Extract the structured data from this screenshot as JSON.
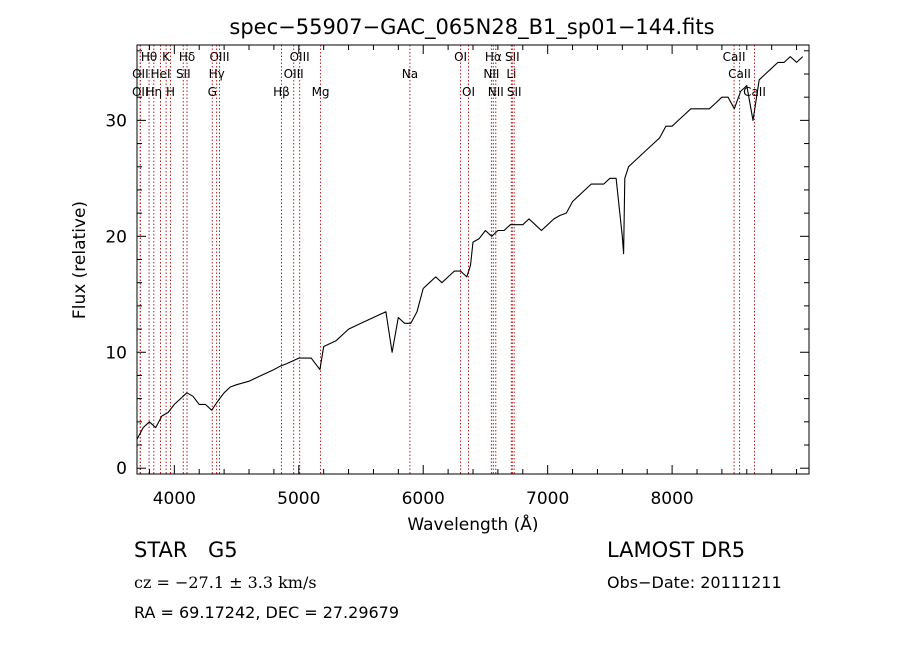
{
  "chart_data": {
    "type": "line",
    "title": "spec−55907−GAC_065N28_B1_sp01−144.fits",
    "xlabel": "Wavelength (Å)",
    "ylabel": "Flux (relative)",
    "xlim": [
      3700,
      9100
    ],
    "ylim": [
      -0.5,
      36.5
    ],
    "x_ticks": [
      4000,
      5000,
      6000,
      7000,
      8000
    ],
    "y_ticks": [
      0,
      10,
      20,
      30
    ],
    "grid": false,
    "line_color": "#000000",
    "marker_color": "#b22222",
    "series": [
      {
        "x": [
          3700,
          3750,
          3800,
          3850,
          3900,
          3950,
          4000,
          4050,
          4100,
          4150,
          4200,
          4250,
          4300,
          4350,
          4400,
          4450,
          4500,
          4600,
          4700,
          4800,
          4850,
          4900,
          5000,
          5100,
          5170,
          5200,
          5300,
          5400,
          5500,
          5600,
          5700,
          5750,
          5800,
          5850,
          5900,
          5950,
          6000,
          6050,
          6100,
          6150,
          6200,
          6250,
          6300,
          6350,
          6380,
          6400,
          6450,
          6500,
          6550,
          6600,
          6650,
          6700,
          6750,
          6800,
          6850,
          6900,
          6950,
          7000,
          7050,
          7100,
          7150,
          7200,
          7250,
          7300,
          7350,
          7400,
          7450,
          7500,
          7550,
          7600,
          7610,
          7620,
          7650,
          7700,
          7750,
          7800,
          7850,
          7900,
          7950,
          8000,
          8050,
          8100,
          8150,
          8200,
          8250,
          8300,
          8350,
          8400,
          8450,
          8500,
          8550,
          8600,
          8650,
          8700,
          8750,
          8800,
          8850,
          8900,
          8950,
          9000,
          9050
        ],
        "y": [
          2.5,
          3.5,
          4.0,
          3.5,
          4.5,
          4.8,
          5.5,
          6.0,
          6.5,
          6.2,
          5.5,
          5.5,
          5.0,
          5.8,
          6.5,
          7.0,
          7.2,
          7.5,
          8.0,
          8.5,
          8.8,
          9.0,
          9.5,
          9.5,
          8.5,
          10.5,
          11.0,
          12.0,
          12.5,
          13.0,
          13.5,
          10.0,
          13.0,
          12.5,
          12.5,
          13.5,
          15.5,
          16.0,
          16.5,
          16.0,
          16.5,
          17.0,
          17.0,
          16.5,
          17.5,
          19.5,
          19.8,
          20.5,
          20.0,
          20.5,
          20.5,
          21.0,
          21.0,
          21.0,
          21.5,
          21.0,
          20.5,
          21.0,
          21.5,
          21.8,
          22.0,
          23.0,
          23.5,
          24.0,
          24.5,
          24.5,
          24.5,
          25.0,
          25.0,
          20.0,
          18.5,
          25.0,
          26.0,
          26.5,
          27.0,
          27.5,
          28.0,
          28.5,
          29.5,
          29.5,
          30.0,
          30.5,
          31.0,
          31.0,
          31.0,
          31.0,
          31.5,
          32.0,
          32.0,
          31.0,
          32.5,
          33.0,
          30.0,
          33.5,
          34.0,
          34.5,
          35.0,
          35.0,
          35.5,
          35.0,
          35.5
        ]
      }
    ],
    "line_markers": [
      {
        "label": "Hθ",
        "x": 3797,
        "row": 1
      },
      {
        "label": "K",
        "x": 3934,
        "row": 1
      },
      {
        "label": "Hδ",
        "x": 4102,
        "row": 1
      },
      {
        "label": "OIII",
        "x": 4363,
        "row": 1
      },
      {
        "label": "OIII",
        "x": 5007,
        "row": 1
      },
      {
        "label": "OI",
        "x": 6300,
        "row": 1
      },
      {
        "label": "Hα",
        "x": 6563,
        "row": 1
      },
      {
        "label": "SII",
        "x": 6716,
        "row": 1
      },
      {
        "label": "CaII",
        "x": 8498,
        "row": 1
      },
      {
        "label": "OII",
        "x": 3727,
        "row": 2
      },
      {
        "label": "HeI",
        "x": 3889,
        "row": 2
      },
      {
        "label": "SII",
        "x": 4072,
        "row": 2
      },
      {
        "label": "Hγ",
        "x": 4340,
        "row": 2
      },
      {
        "label": "OIII",
        "x": 4959,
        "row": 2
      },
      {
        "label": "Na",
        "x": 5893,
        "row": 2
      },
      {
        "label": "NII",
        "x": 6548,
        "row": 2
      },
      {
        "label": "Li",
        "x": 6708,
        "row": 2
      },
      {
        "label": "CaII",
        "x": 8542,
        "row": 2
      },
      {
        "label": "OII",
        "x": 3726,
        "row": 3
      },
      {
        "label": "Hη",
        "x": 3835,
        "row": 3
      },
      {
        "label": "H",
        "x": 3969,
        "row": 3
      },
      {
        "label": "G",
        "x": 4305,
        "row": 3
      },
      {
        "label": "Hβ",
        "x": 4861,
        "row": 3
      },
      {
        "label": "Mg",
        "x": 5175,
        "row": 3
      },
      {
        "label": "OI",
        "x": 6364,
        "row": 3
      },
      {
        "label": "NII",
        "x": 6583,
        "row": 3
      },
      {
        "label": "SII",
        "x": 6731,
        "row": 3
      },
      {
        "label": "CaII",
        "x": 8662,
        "row": 3
      }
    ]
  },
  "info": {
    "class": "STAR",
    "subclass": "G5",
    "survey": "LAMOST  DR5",
    "redshift": "cz = −27.1 ± 3.3 km/s",
    "obs_date": "Obs−Date: 20111211",
    "coords": "RA =  69.17242, DEC =  27.29679"
  }
}
